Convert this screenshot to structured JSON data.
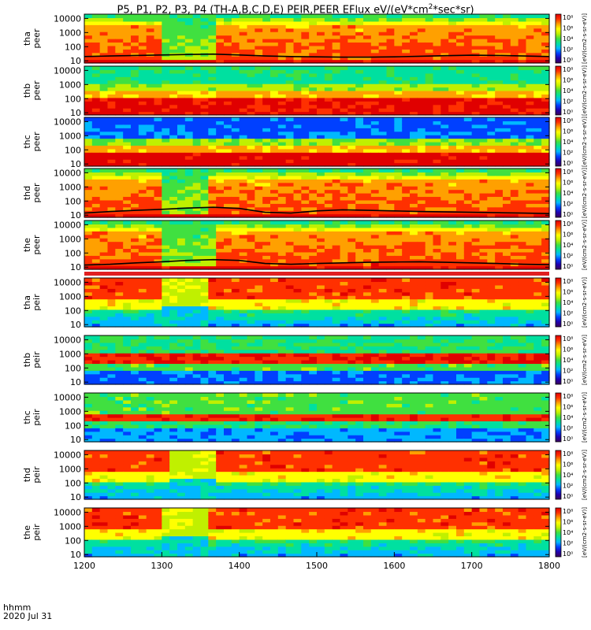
{
  "title": "P5, P1, P2, P3, P4 (TH-A,B,C,D,E) PEIR,PEER EFlux eV/(eV*cm²*sec*sr)",
  "title_parts": {
    "prefix": "P5, P1, P2, P3, P4 (TH-A,B,C,D,E) PEIR,PEER EFlux eV/(eV*cm",
    "sup": "2",
    "suffix": "*sec*sr)"
  },
  "x_footer": {
    "line1": "hhmm",
    "line2": "2020 Jul 31"
  },
  "colors": {
    "colormap": [
      "#3a0058",
      "#2000b0",
      "#0040ff",
      "#00b8ff",
      "#00e0a0",
      "#40e040",
      "#c0f000",
      "#ffff00",
      "#ffa000",
      "#ff3000",
      "#e00000"
    ],
    "separator_band": "#e02020",
    "trace": "#000000"
  },
  "colorbar_label": "[eV/(cm2-s-sr-eV)]",
  "chart_data": {
    "type": "heatmap",
    "x": [
      1200,
      1300,
      1400,
      1500,
      1600,
      1700,
      1800
    ],
    "xlim": [
      1200,
      1800
    ],
    "xtick_labels": [
      "1200",
      "1300",
      "1400",
      "1500",
      "1600",
      "1700",
      "1800"
    ],
    "y_scale": "log",
    "ylim": [
      7,
      20000
    ],
    "ytick_labels": [
      "10000",
      "1000",
      "100",
      "10"
    ],
    "z_scale": "log",
    "zlim": [
      0.1,
      100000000
    ],
    "colorbar_ticks": [
      "10⁸",
      "10⁶",
      "10⁴",
      "10²",
      "10⁰"
    ],
    "panels": [
      {
        "label1": "tha",
        "label2": "peer",
        "probe": "P5",
        "species": "electrons",
        "profile": "tail",
        "dip": [
          1300,
          1365
        ],
        "trace": [
          20,
          22,
          24,
          26,
          28,
          30,
          26,
          22,
          20,
          19,
          18,
          18,
          19,
          21,
          23,
          25,
          24,
          22,
          20
        ]
      },
      {
        "label1": "thb",
        "label2": "peer",
        "probe": "P1",
        "species": "electrons",
        "profile": "flat_e",
        "dip": null,
        "trace": null
      },
      {
        "label1": "thc",
        "label2": "peer",
        "probe": "P2",
        "species": "electrons",
        "profile": "flat_e2",
        "dip": null,
        "trace": null
      },
      {
        "label1": "thd",
        "label2": "peer",
        "probe": "P3",
        "species": "electrons",
        "profile": "tail",
        "dip": [
          1300,
          1360
        ],
        "trace": [
          14,
          18,
          22,
          26,
          32,
          36,
          30,
          16,
          14,
          20,
          24,
          22,
          20,
          18,
          17,
          16,
          15,
          14,
          13
        ]
      },
      {
        "label1": "the",
        "label2": "peer",
        "probe": "P4",
        "species": "electrons",
        "profile": "tail",
        "dip": [
          1300,
          1365
        ],
        "trace": [
          14,
          16,
          20,
          24,
          30,
          34,
          30,
          18,
          16,
          18,
          20,
          22,
          23,
          24,
          22,
          20,
          18,
          16,
          15
        ]
      },
      {
        "label1": "tha",
        "label2": "peir",
        "probe": "P5",
        "species": "ions",
        "profile": "ion",
        "dip": [
          1300,
          1360
        ],
        "trace": null
      },
      {
        "label1": "thb",
        "label2": "peir",
        "probe": "P1",
        "species": "ions",
        "profile": "ion_flat",
        "dip": null,
        "trace": null
      },
      {
        "label1": "thc",
        "label2": "peir",
        "probe": "P2",
        "species": "ions",
        "profile": "ion_flat2",
        "dip": null,
        "trace": null
      },
      {
        "label1": "thd",
        "label2": "peir",
        "probe": "P3",
        "species": "ions",
        "profile": "ion",
        "dip": [
          1310,
          1365
        ],
        "trace": null
      },
      {
        "label1": "the",
        "label2": "peir",
        "probe": "P4",
        "species": "ions",
        "profile": "ion",
        "dip": [
          1300,
          1355
        ],
        "trace": null
      }
    ]
  }
}
